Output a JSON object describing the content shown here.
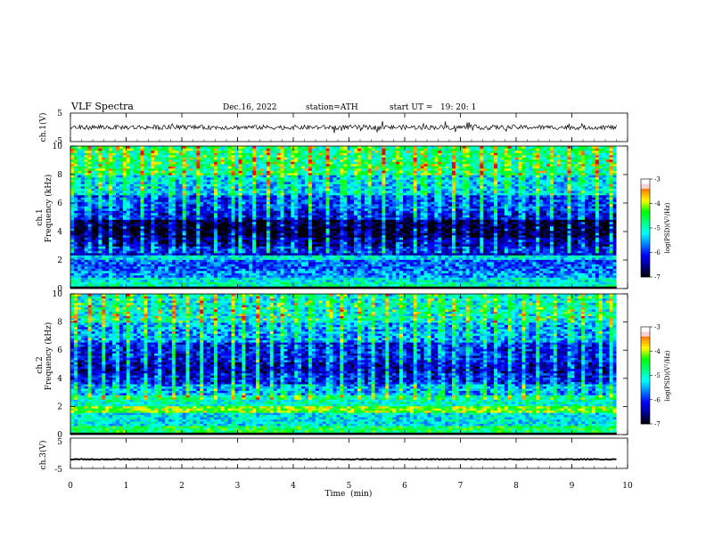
{
  "header": {
    "title": "VLF Spectra",
    "date": "Dec.16, 2022",
    "station": "station=ATH",
    "start": "start UT =   19: 20: 1"
  },
  "chart_data": [
    {
      "type": "line",
      "name": "ch1-waveform",
      "ylabel": "ch.1(V)",
      "ylim": [
        -5,
        5
      ],
      "y_ticks": [
        "5",
        "-5"
      ],
      "xlim": [
        0,
        10
      ],
      "description_values": {
        "mean": 0,
        "noise_amplitude": 0.8
      }
    },
    {
      "type": "heatmap",
      "name": "ch1-spectrogram",
      "ylabel": "ch.1\nFrequency (kHz)",
      "ylabel_lines": [
        "ch.1",
        "Frequency (kHz)"
      ],
      "ylim": [
        0,
        10
      ],
      "y_ticks": [
        "0",
        "2",
        "4",
        "6",
        "8",
        "10"
      ],
      "xlim": [
        0,
        9.8
      ],
      "colorbar": {
        "label": "log(PSD)(V²/Hz)",
        "ticks": [
          "-3",
          "-4",
          "-5",
          "-6",
          "-7"
        ],
        "range": [
          -7,
          -3
        ]
      },
      "bands": [
        {
          "f_low": 0.0,
          "f_high": 0.15,
          "level": -7.5
        },
        {
          "f_low": 0.15,
          "f_high": 0.4,
          "level": -5.0
        },
        {
          "f_low": 0.4,
          "f_high": 0.8,
          "level": -5.2
        },
        {
          "f_low": 0.8,
          "f_high": 1.2,
          "level": -5.6
        },
        {
          "f_low": 1.2,
          "f_high": 2.0,
          "level": -5.8
        },
        {
          "f_low": 2.0,
          "f_high": 2.3,
          "level": -5.2
        },
        {
          "f_low": 2.3,
          "f_high": 3.0,
          "level": -6.2
        },
        {
          "f_low": 3.0,
          "f_high": 3.6,
          "level": -6.6
        },
        {
          "f_low": 3.6,
          "f_high": 4.8,
          "level": -7.0
        },
        {
          "f_low": 4.8,
          "f_high": 5.5,
          "level": -6.3
        },
        {
          "f_low": 5.5,
          "f_high": 6.5,
          "level": -6.0
        },
        {
          "f_low": 6.5,
          "f_high": 8.0,
          "level": -5.4
        },
        {
          "f_low": 8.0,
          "f_high": 10.0,
          "level": -4.9
        }
      ],
      "sferic_times": [
        0.05,
        0.32,
        0.55,
        0.74,
        1.0,
        1.3,
        1.5,
        1.82,
        2.05,
        2.3,
        2.62,
        2.9,
        3.06,
        3.3,
        3.55,
        3.78,
        4.02,
        4.3,
        4.62,
        4.9,
        5.15,
        5.35,
        5.62,
        5.9,
        6.18,
        6.35,
        6.6,
        6.88,
        7.1,
        7.38,
        7.62,
        7.85,
        8.1,
        8.37,
        8.62,
        8.95,
        9.18,
        9.45,
        9.7
      ]
    },
    {
      "type": "heatmap",
      "name": "ch2-spectrogram",
      "ylabel": "ch.2\nFrequency (kHz)",
      "ylabel_lines": [
        "ch.2",
        "Frequency (kHz)"
      ],
      "ylim": [
        0,
        10
      ],
      "y_ticks": [
        "0",
        "2",
        "4",
        "6",
        "8",
        "10"
      ],
      "xlim": [
        0,
        9.8
      ],
      "colorbar": {
        "label": "log(PSD)(V²/Hz)",
        "ticks": [
          "-3",
          "-4",
          "-5",
          "-6",
          "-7"
        ],
        "range": [
          -7,
          -3
        ]
      },
      "bands": [
        {
          "f_low": 0.0,
          "f_high": 0.15,
          "level": -7.5
        },
        {
          "f_low": 0.15,
          "f_high": 0.6,
          "level": -4.6
        },
        {
          "f_low": 0.6,
          "f_high": 1.6,
          "level": -5.2
        },
        {
          "f_low": 1.6,
          "f_high": 2.1,
          "level": -4.2
        },
        {
          "f_low": 2.1,
          "f_high": 2.8,
          "level": -5.0
        },
        {
          "f_low": 2.8,
          "f_high": 3.6,
          "level": -5.6
        },
        {
          "f_low": 3.6,
          "f_high": 4.4,
          "level": -6.2
        },
        {
          "f_low": 4.4,
          "f_high": 5.2,
          "level": -6.5
        },
        {
          "f_low": 5.2,
          "f_high": 6.6,
          "level": -6.2
        },
        {
          "f_low": 6.6,
          "f_high": 8.0,
          "level": -5.6
        },
        {
          "f_low": 8.0,
          "f_high": 10.0,
          "level": -5.2
        }
      ],
      "sferic_times": [
        0.08,
        0.34,
        0.6,
        0.82,
        1.05,
        1.34,
        1.58,
        1.85,
        2.1,
        2.36,
        2.6,
        2.92,
        3.1,
        3.36,
        3.6,
        3.82,
        4.08,
        4.32,
        4.65,
        4.88,
        5.2,
        5.42,
        5.68,
        5.95,
        6.2,
        6.42,
        6.66,
        6.9,
        7.15,
        7.42,
        7.65,
        7.9,
        8.15,
        8.4,
        8.68,
        8.98,
        9.22,
        9.5,
        9.72
      ]
    },
    {
      "type": "line",
      "name": "ch3-waveform",
      "ylabel": "ch.3(V)",
      "ylim": [
        -5,
        5
      ],
      "y_ticks": [
        "5",
        "-5"
      ],
      "xlim": [
        0,
        10
      ],
      "xlabel": "Time  (min)",
      "x_ticks": [
        "0",
        "1",
        "2",
        "3",
        "4",
        "5",
        "6",
        "7",
        "8",
        "9",
        "10"
      ],
      "description_values": {
        "mean": -2,
        "noise_amplitude": 0.15
      }
    }
  ],
  "colors": {
    "colormap": [
      "#000000",
      "#00008b",
      "#0000ff",
      "#0080ff",
      "#00ffff",
      "#00ff80",
      "#00ff00",
      "#ffff00",
      "#ff8000",
      "#ff0000",
      "#ffffff"
    ],
    "background": "#ffffff",
    "ink": "#000000"
  }
}
